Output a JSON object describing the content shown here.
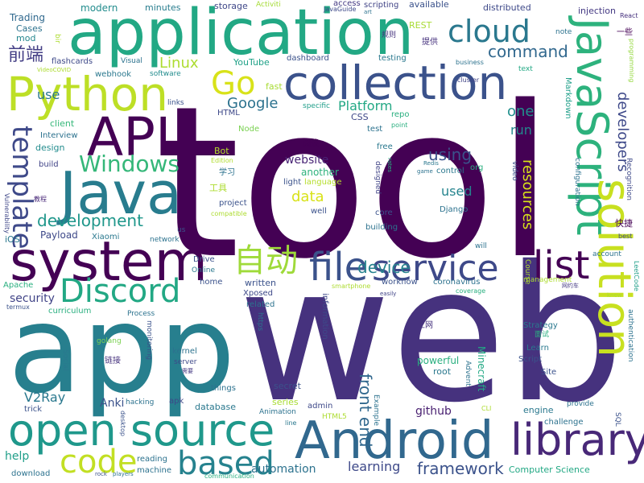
{
  "words": [
    {
      "text": "tool",
      "color": "#440154"
    },
    {
      "text": "web",
      "color": "#46327e"
    },
    {
      "text": "app",
      "color": "#277f8e"
    },
    {
      "text": "application",
      "color": "#22a884"
    },
    {
      "text": "Android",
      "color": "#31688e"
    },
    {
      "text": "system",
      "color": "#440154"
    },
    {
      "text": "Java",
      "color": "#287c8e"
    },
    {
      "text": "Python",
      "color": "#bddf26"
    },
    {
      "text": "collection",
      "color": "#3b528b"
    },
    {
      "text": "JavaScript",
      "color": "#2db27d"
    },
    {
      "text": "open source",
      "color": "#1f988b"
    },
    {
      "text": "API",
      "color": "#440154"
    },
    {
      "text": "library",
      "color": "#482878"
    },
    {
      "text": "solution",
      "color": "#c8e020"
    },
    {
      "text": "service",
      "color": "#3e4989"
    },
    {
      "text": "file",
      "color": "#3b528b"
    },
    {
      "text": "list",
      "color": "#440154"
    },
    {
      "text": "cloud",
      "color": "#2a788e"
    },
    {
      "text": "Discord",
      "color": "#22a884"
    },
    {
      "text": "based",
      "color": "#26828e"
    },
    {
      "text": "code",
      "color": "#c2df23"
    },
    {
      "text": "Go",
      "color": "#d8e219"
    },
    {
      "text": "自动",
      "color": "#9fda3a"
    },
    {
      "text": "template",
      "color": "#3e4989"
    },
    {
      "text": "Windows",
      "color": "#35b779"
    },
    {
      "text": "development",
      "color": "#1f978b"
    },
    {
      "text": "command",
      "color": "#31688e"
    },
    {
      "text": "framework",
      "color": "#3b528b"
    },
    {
      "text": "front end",
      "color": "#31688e"
    },
    {
      "text": "resources",
      "color": "#d8e219"
    },
    {
      "text": "device",
      "color": "#26828e"
    },
    {
      "text": "using",
      "color": "#3b528b"
    },
    {
      "text": "developers",
      "color": "#3e4989"
    },
    {
      "text": "Linux",
      "color": "#addc30"
    },
    {
      "text": "Google",
      "color": "#2c728e"
    },
    {
      "text": "Platform",
      "color": "#22a884"
    },
    {
      "text": "V2Ray",
      "color": "#2a788e"
    },
    {
      "text": "data",
      "color": "#d8e219"
    },
    {
      "text": "run",
      "color": "#23898e"
    },
    {
      "text": "one",
      "color": "#21908d"
    },
    {
      "text": "used",
      "color": "#25848e"
    },
    {
      "text": "website",
      "color": "#482475"
    },
    {
      "text": "learning",
      "color": "#3e4989"
    },
    {
      "text": "automation",
      "color": "#2c728e"
    },
    {
      "text": "github",
      "color": "#481f70"
    },
    {
      "text": "security",
      "color": "#414487"
    },
    {
      "text": "help",
      "color": "#1f9e89"
    },
    {
      "text": "前端",
      "color": "#433e85"
    },
    {
      "text": "cloud",
      "color": "#2a788e"
    },
    {
      "text": "modern",
      "color": "#228c8d"
    },
    {
      "text": "use",
      "color": "#2a788e"
    },
    {
      "text": "Trading",
      "color": "#30698e"
    },
    {
      "text": "Cases",
      "color": "#2c728e"
    },
    {
      "text": "mod",
      "color": "#24868e"
    },
    {
      "text": "minutes",
      "color": "#287d8e"
    },
    {
      "text": "storage",
      "color": "#3f4788"
    },
    {
      "text": "Activiti",
      "color": "#a5db36"
    },
    {
      "text": "scripting",
      "color": "#414487"
    },
    {
      "text": "available",
      "color": "#3b528b"
    },
    {
      "text": "distributed",
      "color": "#3e4989"
    },
    {
      "text": "injection",
      "color": "#443983"
    },
    {
      "text": "JavaGuide",
      "color": "#3e4989"
    },
    {
      "text": "一些",
      "color": "#440154"
    },
    {
      "text": "React",
      "color": "#46327e"
    },
    {
      "text": "note",
      "color": "#2c728e"
    },
    {
      "text": "REST",
      "color": "#a8db34"
    },
    {
      "text": "规则",
      "color": "#46337e"
    },
    {
      "text": "提供",
      "color": "#46327e"
    },
    {
      "text": "flashcards",
      "color": "#3e4989"
    },
    {
      "text": "Visual",
      "color": "#2c728e"
    },
    {
      "text": "dashboard",
      "color": "#3b528b"
    },
    {
      "text": "testing",
      "color": "#2a788e"
    },
    {
      "text": "business",
      "color": "#2c728e"
    },
    {
      "text": "text",
      "color": "#22a884"
    },
    {
      "text": "YouTube",
      "color": "#1fa187"
    },
    {
      "text": "webhook",
      "color": "#2a788e"
    },
    {
      "text": "software",
      "color": "#228c8d"
    },
    {
      "text": "fast",
      "color": "#a8db34"
    },
    {
      "text": "repo",
      "color": "#29af7f"
    },
    {
      "text": "point",
      "color": "#29af7f"
    },
    {
      "text": "cluster",
      "color": "#414487"
    },
    {
      "text": "Markdown",
      "color": "#1f9e89"
    },
    {
      "text": "programming",
      "color": "#95d840"
    },
    {
      "text": "links",
      "color": "#3b528b"
    },
    {
      "text": "HTML",
      "color": "#3e4989"
    },
    {
      "text": "specific",
      "color": "#1f9e89"
    },
    {
      "text": "access",
      "color": "#443983"
    },
    {
      "text": "CSS",
      "color": "#3f4788"
    },
    {
      "text": "test",
      "color": "#2c728e"
    },
    {
      "text": "client",
      "color": "#35b779"
    },
    {
      "text": "Interview",
      "color": "#2c728e"
    },
    {
      "text": "design",
      "color": "#228c8d"
    },
    {
      "text": "Node",
      "color": "#7ad151"
    },
    {
      "text": "阅读",
      "color": "#440154"
    },
    {
      "text": "free",
      "color": "#2a788e"
    },
    {
      "text": "Bot",
      "color": "#b5de2b"
    },
    {
      "text": "Edition",
      "color": "#b0dd2f"
    },
    {
      "text": "学习",
      "color": "#2c728e"
    },
    {
      "text": "工具",
      "color": "#addc30"
    },
    {
      "text": "build",
      "color": "#414487"
    },
    {
      "text": "教程",
      "color": "#482878"
    },
    {
      "text": "Vulnerability",
      "color": "#3f4788"
    },
    {
      "text": "another",
      "color": "#2db27d"
    },
    {
      "text": "light",
      "color": "#3b528b"
    },
    {
      "text": "language",
      "color": "#b5de2b"
    },
    {
      "text": "designed",
      "color": "#414487"
    },
    {
      "text": "rates",
      "color": "#29af7f"
    },
    {
      "text": "Redis",
      "color": "#2a788e"
    },
    {
      "text": "game",
      "color": "#2c728e"
    },
    {
      "text": "control",
      "color": "#2a788e"
    },
    {
      "text": "org",
      "color": "#29af7f"
    },
    {
      "text": "video",
      "color": "#3b528b"
    },
    {
      "text": "configuration",
      "color": "#2c728e"
    },
    {
      "text": "Recognition",
      "color": "#3e4989"
    },
    {
      "text": "快捷",
      "color": "#440154"
    },
    {
      "text": "best",
      "color": "#3e4989"
    },
    {
      "text": "project",
      "color": "#3b528b"
    },
    {
      "text": "compatible",
      "color": "#addc30"
    },
    {
      "text": "well",
      "color": "#3b528b"
    },
    {
      "text": "building",
      "color": "#2c728e"
    },
    {
      "text": "Django",
      "color": "#2c728e"
    },
    {
      "text": "core",
      "color": "#3b528b"
    },
    {
      "text": "Payload",
      "color": "#3e4989"
    },
    {
      "text": "iOS",
      "color": "#2a788e"
    },
    {
      "text": "Xiaomi",
      "color": "#2a788e"
    },
    {
      "text": "us",
      "color": "#3b528b"
    },
    {
      "text": "network",
      "color": "#2c728e"
    },
    {
      "text": "will",
      "color": "#2c728e"
    },
    {
      "text": "account",
      "color": "#2c728e"
    },
    {
      "text": "Course",
      "color": "#b0dd2f"
    },
    {
      "text": "LeetCode",
      "color": "#1f9e89"
    },
    {
      "text": "Drive",
      "color": "#3b528b"
    },
    {
      "text": "Online",
      "color": "#2a788e"
    },
    {
      "text": "home",
      "color": "#3b528b"
    },
    {
      "text": "management",
      "color": "#addc30"
    },
    {
      "text": "网约车",
      "color": "#443983"
    },
    {
      "text": "knew",
      "color": "#addc30"
    },
    {
      "text": "Apache",
      "color": "#29af7f"
    },
    {
      "text": "termux",
      "color": "#3b528b"
    },
    {
      "text": "curriculum",
      "color": "#29af7f"
    },
    {
      "text": "written",
      "color": "#3b528b"
    },
    {
      "text": "Xposed",
      "color": "#3e4989"
    },
    {
      "text": "related",
      "color": "#2c728e"
    },
    {
      "text": "workflow",
      "color": "#3b528b"
    },
    {
      "text": "coronavirus",
      "color": "#2c728e"
    },
    {
      "text": "coverage",
      "color": "#29af7f"
    },
    {
      "text": "smartphone",
      "color": "#addc30"
    },
    {
      "text": "easily",
      "color": "#414487"
    },
    {
      "text": "Process",
      "color": "#2c728e"
    },
    {
      "text": "https",
      "color": "#2c728e"
    },
    {
      "text": "information",
      "color": "#3e4989"
    },
    {
      "text": "上网",
      "color": "#46327e"
    },
    {
      "text": "核心",
      "color": "#46327e"
    },
    {
      "text": "Strategy",
      "color": "#2a788e"
    },
    {
      "text": "面试",
      "color": "#29af7f"
    },
    {
      "text": "Script",
      "color": "#3b528b"
    },
    {
      "text": "Learn",
      "color": "#2a788e"
    },
    {
      "text": "Site",
      "color": "#3b528b"
    },
    {
      "text": "authentication",
      "color": "#2c728e"
    },
    {
      "text": "golang",
      "color": "#7ad151"
    },
    {
      "text": "monitoring",
      "color": "#3b528b"
    },
    {
      "text": "kernel",
      "color": "#2c728e"
    },
    {
      "text": "server",
      "color": "#3e4989"
    },
    {
      "text": "链接",
      "color": "#46327e"
    },
    {
      "text": "Social",
      "color": "#2a788e"
    },
    {
      "text": "things",
      "color": "#2c728e"
    },
    {
      "text": "需要",
      "color": "#443983"
    },
    {
      "text": "secret",
      "color": "#3b528b"
    },
    {
      "text": "powerful",
      "color": "#29af7f"
    },
    {
      "text": "root",
      "color": "#2a788e"
    },
    {
      "text": "Minecraft",
      "color": "#22a884"
    },
    {
      "text": "Advent",
      "color": "#2c728e"
    },
    {
      "text": "Anki",
      "color": "#3b528b"
    },
    {
      "text": "hacking",
      "color": "#2c728e"
    },
    {
      "text": "apk",
      "color": "#3e4989"
    },
    {
      "text": "database",
      "color": "#2a788e"
    },
    {
      "text": "series",
      "color": "#a8db34"
    },
    {
      "text": "admin",
      "color": "#3e4989"
    },
    {
      "text": "trick",
      "color": "#3b528b"
    },
    {
      "text": "Animation",
      "color": "#2c728e"
    },
    {
      "text": "line",
      "color": "#2a788e"
    },
    {
      "text": "HTML5",
      "color": "#addc30"
    },
    {
      "text": "Example",
      "color": "#2c728e"
    },
    {
      "text": "CLI",
      "color": "#addc30"
    },
    {
      "text": "engine",
      "color": "#2a788e"
    },
    {
      "text": "provide",
      "color": "#2c728e"
    },
    {
      "text": "challenge",
      "color": "#2c728e"
    },
    {
      "text": "SQL",
      "color": "#3b528b"
    },
    {
      "text": "desktop",
      "color": "#3b528b"
    },
    {
      "text": "reading",
      "color": "#2c728e"
    },
    {
      "text": "machine",
      "color": "#2c728e"
    },
    {
      "text": "download",
      "color": "#2c728e"
    },
    {
      "text": "rock",
      "color": "#3b528b"
    },
    {
      "text": "players",
      "color": "#2c728e"
    },
    {
      "text": "communication",
      "color": "#29af7f"
    },
    {
      "text": "Computer Science",
      "color": "#22a884"
    },
    {
      "text": "bir",
      "color": "#addc30"
    },
    {
      "text": "VideoCOVID",
      "color": "#addc30"
    },
    {
      "text": "art",
      "color": "#2c728e"
    }
  ]
}
